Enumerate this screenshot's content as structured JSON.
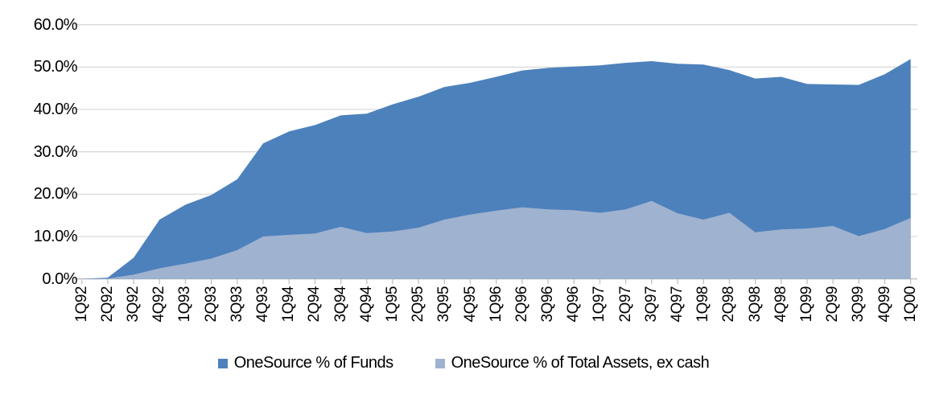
{
  "chart_data": {
    "type": "area",
    "mode": "overlapped",
    "title": "",
    "xlabel": "",
    "ylabel": "",
    "ylim": [
      0,
      60
    ],
    "yticks": [
      0,
      10,
      20,
      30,
      40,
      50,
      60
    ],
    "ytick_labels": [
      "0.0%",
      "10.0%",
      "20.0%",
      "30.0%",
      "40.0%",
      "50.0%",
      "60.0%"
    ],
    "grid": "horizontal",
    "legend_position": "bottom",
    "categories": [
      "1Q92",
      "2Q92",
      "3Q92",
      "4Q92",
      "1Q93",
      "2Q93",
      "3Q93",
      "4Q93",
      "1Q94",
      "2Q94",
      "3Q94",
      "4Q94",
      "1Q95",
      "2Q95",
      "3Q95",
      "4Q95",
      "1Q96",
      "2Q96",
      "3Q96",
      "4Q96",
      "1Q97",
      "2Q97",
      "3Q97",
      "4Q97",
      "1Q98",
      "2Q98",
      "3Q98",
      "4Q98",
      "1Q99",
      "2Q99",
      "3Q99",
      "4Q99",
      "1Q00"
    ],
    "series": [
      {
        "name": "OneSource % of Funds",
        "color": "#4D81BC",
        "values": [
          0.0,
          0.3,
          5.0,
          14.0,
          17.5,
          19.8,
          23.5,
          32.0,
          34.8,
          36.3,
          38.6,
          39.0,
          41.2,
          43.0,
          45.3,
          46.3,
          47.7,
          49.2,
          49.8,
          50.1,
          50.4,
          51.0,
          51.4,
          50.8,
          50.6,
          49.3,
          47.3,
          47.7,
          46.0,
          45.9,
          45.8,
          48.3,
          51.9
        ]
      },
      {
        "name": "OneSource % of Total Assets, ex cash",
        "color": "#9FB2CF",
        "values": [
          0.0,
          0.1,
          1.0,
          2.5,
          3.6,
          4.8,
          6.8,
          10.0,
          10.4,
          10.7,
          12.3,
          10.8,
          11.2,
          12.1,
          14.0,
          15.2,
          16.1,
          16.9,
          16.4,
          16.2,
          15.6,
          16.4,
          18.4,
          15.5,
          14.0,
          15.6,
          11.0,
          11.7,
          11.9,
          12.5,
          10.1,
          11.8,
          14.4
        ]
      }
    ],
    "axis_colors": {
      "gridline": "#D9D9D9",
      "axis_line": "#C0C0C0",
      "tick": "#C0C0C0"
    }
  }
}
